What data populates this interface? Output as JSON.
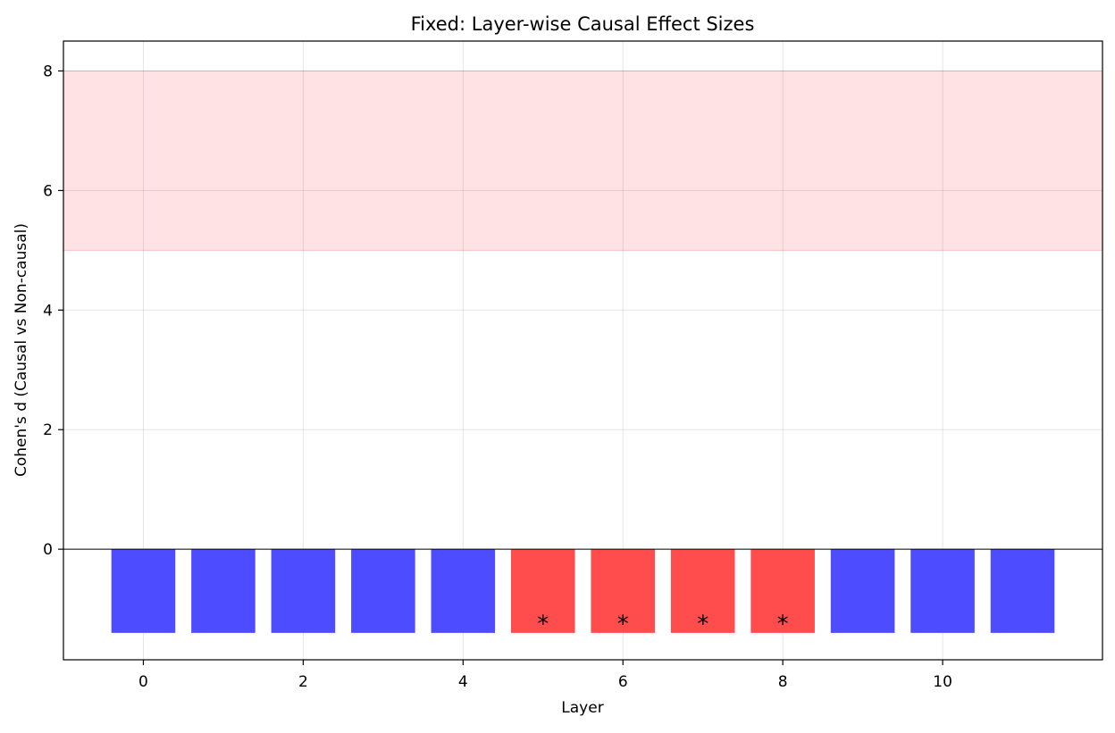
{
  "chart_data": {
    "type": "bar",
    "title": "Fixed: Layer-wise Causal Effect Sizes",
    "xlabel": "Layer",
    "ylabel": "Cohen's d (Causal vs Non-causal)",
    "x": [
      0,
      1,
      2,
      3,
      4,
      5,
      6,
      7,
      8,
      9,
      10,
      11
    ],
    "values": [
      -1.4,
      -1.4,
      -1.4,
      -1.4,
      -1.4,
      -1.4,
      -1.4,
      -1.4,
      -1.4,
      -1.4,
      -1.4,
      -1.4
    ],
    "bar_colors": [
      "blue",
      "blue",
      "blue",
      "blue",
      "blue",
      "red",
      "red",
      "red",
      "red",
      "blue",
      "blue",
      "blue"
    ],
    "colors": {
      "blue": "#4d4dff",
      "red": "#ff4d4d",
      "band": "#ffe2e4"
    },
    "markers": [
      {
        "x": 5,
        "y": -1.2,
        "label": "*"
      },
      {
        "x": 6,
        "y": -1.2,
        "label": "*"
      },
      {
        "x": 7,
        "y": -1.2,
        "label": "*"
      },
      {
        "x": 8,
        "y": -1.2,
        "label": "*"
      }
    ],
    "shaded_band": {
      "y0": 5,
      "y1": 8
    },
    "baseline": 0,
    "xlim": [
      -1,
      12
    ],
    "ylim": [
      -1.85,
      8.5
    ],
    "xticks": [
      0,
      2,
      4,
      6,
      8,
      10
    ],
    "yticks": [
      0,
      2,
      4,
      6,
      8
    ],
    "grid": true,
    "legend": "none"
  }
}
